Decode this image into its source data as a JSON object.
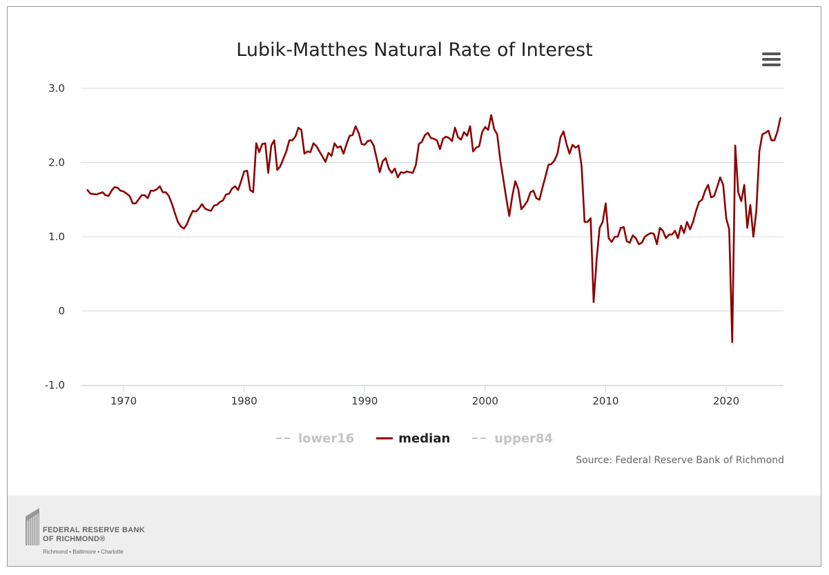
{
  "chart_data": {
    "type": "line",
    "title": "Lubik-Matthes Natural Rate of Interest",
    "xlabel": "",
    "ylabel": "",
    "xlim": [
      1966.5,
      2024.75
    ],
    "ylim": [
      -1.0,
      3.0
    ],
    "y_ticks": [
      {
        "value": 3.0,
        "label": "3.0"
      },
      {
        "value": 2.0,
        "label": "2.0"
      },
      {
        "value": 1.0,
        "label": "1.0"
      },
      {
        "value": 0,
        "label": "0"
      },
      {
        "value": -1.0,
        "label": "-1.0"
      }
    ],
    "x_ticks": [
      {
        "value": 1970,
        "label": "1970"
      },
      {
        "value": 1980,
        "label": "1980"
      },
      {
        "value": 1990,
        "label": "1990"
      },
      {
        "value": 2000,
        "label": "2000"
      },
      {
        "value": 2010,
        "label": "2010"
      },
      {
        "value": 2020,
        "label": "2020"
      }
    ],
    "grid": true,
    "legend_position": "bottom-center",
    "series": [
      {
        "name": "lower16",
        "visible": false,
        "color": "#c4c4c4",
        "dash": true,
        "values": []
      },
      {
        "name": "upper84",
        "visible": false,
        "color": "#c4c4c4",
        "dash": true,
        "values": []
      },
      {
        "name": "median",
        "visible": true,
        "color": "#8b0000",
        "points": [
          [
            1967.0,
            1.63
          ],
          [
            1967.25,
            1.58
          ],
          [
            1967.75,
            1.57
          ],
          [
            1968.25,
            1.6
          ],
          [
            1968.5,
            1.56
          ],
          [
            1968.75,
            1.55
          ],
          [
            1969.0,
            1.62
          ],
          [
            1969.25,
            1.67
          ],
          [
            1969.5,
            1.66
          ],
          [
            1969.75,
            1.62
          ],
          [
            1970.0,
            1.61
          ],
          [
            1970.25,
            1.58
          ],
          [
            1970.5,
            1.55
          ],
          [
            1970.75,
            1.45
          ],
          [
            1971.0,
            1.45
          ],
          [
            1971.5,
            1.56
          ],
          [
            1971.75,
            1.56
          ],
          [
            1972.0,
            1.52
          ],
          [
            1972.25,
            1.62
          ],
          [
            1972.5,
            1.62
          ],
          [
            1972.75,
            1.64
          ],
          [
            1973.0,
            1.68
          ],
          [
            1973.25,
            1.6
          ],
          [
            1973.5,
            1.6
          ],
          [
            1973.75,
            1.55
          ],
          [
            1974.0,
            1.45
          ],
          [
            1974.25,
            1.32
          ],
          [
            1974.5,
            1.2
          ],
          [
            1974.75,
            1.14
          ],
          [
            1975.0,
            1.11
          ],
          [
            1975.25,
            1.17
          ],
          [
            1975.5,
            1.27
          ],
          [
            1975.75,
            1.35
          ],
          [
            1976.0,
            1.34
          ],
          [
            1976.25,
            1.38
          ],
          [
            1976.5,
            1.44
          ],
          [
            1976.75,
            1.38
          ],
          [
            1977.0,
            1.36
          ],
          [
            1977.25,
            1.35
          ],
          [
            1977.5,
            1.42
          ],
          [
            1977.75,
            1.43
          ],
          [
            1978.0,
            1.47
          ],
          [
            1978.25,
            1.49
          ],
          [
            1978.5,
            1.57
          ],
          [
            1978.75,
            1.58
          ],
          [
            1979.0,
            1.65
          ],
          [
            1979.25,
            1.68
          ],
          [
            1979.5,
            1.63
          ],
          [
            1979.75,
            1.75
          ],
          [
            1980.0,
            1.88
          ],
          [
            1980.25,
            1.89
          ],
          [
            1980.5,
            1.63
          ],
          [
            1980.75,
            1.6
          ],
          [
            1981.0,
            2.26
          ],
          [
            1981.25,
            2.14
          ],
          [
            1981.5,
            2.25
          ],
          [
            1981.75,
            2.26
          ],
          [
            1982.0,
            1.86
          ],
          [
            1982.25,
            2.23
          ],
          [
            1982.5,
            2.3
          ],
          [
            1982.75,
            1.9
          ],
          [
            1983.0,
            1.95
          ],
          [
            1983.25,
            2.05
          ],
          [
            1983.5,
            2.15
          ],
          [
            1983.75,
            2.3
          ],
          [
            1984.0,
            2.3
          ],
          [
            1984.25,
            2.35
          ],
          [
            1984.5,
            2.47
          ],
          [
            1984.75,
            2.44
          ],
          [
            1985.0,
            2.12
          ],
          [
            1985.25,
            2.15
          ],
          [
            1985.5,
            2.14
          ],
          [
            1985.75,
            2.26
          ],
          [
            1986.0,
            2.22
          ],
          [
            1986.25,
            2.15
          ],
          [
            1986.5,
            2.08
          ],
          [
            1986.75,
            2.01
          ],
          [
            1987.0,
            2.13
          ],
          [
            1987.25,
            2.09
          ],
          [
            1987.5,
            2.26
          ],
          [
            1987.75,
            2.2
          ],
          [
            1988.0,
            2.22
          ],
          [
            1988.25,
            2.12
          ],
          [
            1988.5,
            2.25
          ],
          [
            1988.75,
            2.36
          ],
          [
            1989.0,
            2.37
          ],
          [
            1989.25,
            2.49
          ],
          [
            1989.5,
            2.4
          ],
          [
            1989.75,
            2.25
          ],
          [
            1990.0,
            2.24
          ],
          [
            1990.25,
            2.29
          ],
          [
            1990.5,
            2.3
          ],
          [
            1990.75,
            2.23
          ],
          [
            1991.0,
            2.05
          ],
          [
            1991.25,
            1.87
          ],
          [
            1991.5,
            2.02
          ],
          [
            1991.75,
            2.06
          ],
          [
            1992.0,
            1.92
          ],
          [
            1992.25,
            1.86
          ],
          [
            1992.5,
            1.92
          ],
          [
            1992.75,
            1.8
          ],
          [
            1993.0,
            1.87
          ],
          [
            1993.25,
            1.86
          ],
          [
            1993.5,
            1.88
          ],
          [
            1993.75,
            1.87
          ],
          [
            1994.0,
            1.86
          ],
          [
            1994.25,
            1.97
          ],
          [
            1994.5,
            2.25
          ],
          [
            1994.75,
            2.28
          ],
          [
            1995.0,
            2.37
          ],
          [
            1995.25,
            2.4
          ],
          [
            1995.5,
            2.33
          ],
          [
            1995.75,
            2.32
          ],
          [
            1996.0,
            2.3
          ],
          [
            1996.25,
            2.18
          ],
          [
            1996.5,
            2.32
          ],
          [
            1996.75,
            2.35
          ],
          [
            1997.0,
            2.33
          ],
          [
            1997.25,
            2.29
          ],
          [
            1997.5,
            2.47
          ],
          [
            1997.75,
            2.34
          ],
          [
            1998.0,
            2.31
          ],
          [
            1998.25,
            2.41
          ],
          [
            1998.5,
            2.36
          ],
          [
            1998.75,
            2.49
          ],
          [
            1999.0,
            2.15
          ],
          [
            1999.25,
            2.2
          ],
          [
            1999.5,
            2.22
          ],
          [
            1999.75,
            2.41
          ],
          [
            2000.0,
            2.48
          ],
          [
            2000.25,
            2.44
          ],
          [
            2000.5,
            2.64
          ],
          [
            2000.75,
            2.45
          ],
          [
            2001.0,
            2.38
          ],
          [
            2001.25,
            2.04
          ],
          [
            2001.5,
            1.78
          ],
          [
            2001.75,
            1.52
          ],
          [
            2002.0,
            1.28
          ],
          [
            2002.25,
            1.55
          ],
          [
            2002.5,
            1.75
          ],
          [
            2002.75,
            1.64
          ],
          [
            2003.0,
            1.37
          ],
          [
            2003.25,
            1.42
          ],
          [
            2003.5,
            1.48
          ],
          [
            2003.75,
            1.6
          ],
          [
            2004.0,
            1.62
          ],
          [
            2004.25,
            1.52
          ],
          [
            2004.5,
            1.5
          ],
          [
            2004.75,
            1.66
          ],
          [
            2005.0,
            1.81
          ],
          [
            2005.25,
            1.97
          ],
          [
            2005.5,
            1.98
          ],
          [
            2005.75,
            2.03
          ],
          [
            2006.0,
            2.12
          ],
          [
            2006.25,
            2.34
          ],
          [
            2006.5,
            2.42
          ],
          [
            2006.75,
            2.25
          ],
          [
            2007.0,
            2.12
          ],
          [
            2007.25,
            2.24
          ],
          [
            2007.5,
            2.2
          ],
          [
            2007.75,
            2.23
          ],
          [
            2008.0,
            1.95
          ],
          [
            2008.25,
            1.2
          ],
          [
            2008.5,
            1.2
          ],
          [
            2008.75,
            1.25
          ],
          [
            2009.0,
            0.12
          ],
          [
            2009.25,
            0.7
          ],
          [
            2009.5,
            1.12
          ],
          [
            2009.75,
            1.2
          ],
          [
            2010.0,
            1.45
          ],
          [
            2010.25,
            0.98
          ],
          [
            2010.5,
            0.93
          ],
          [
            2010.75,
            1.0
          ],
          [
            2011.0,
            1.0
          ],
          [
            2011.25,
            1.12
          ],
          [
            2011.5,
            1.13
          ],
          [
            2011.75,
            0.94
          ],
          [
            2012.0,
            0.92
          ],
          [
            2012.25,
            1.02
          ],
          [
            2012.5,
            0.98
          ],
          [
            2012.75,
            0.9
          ],
          [
            2013.0,
            0.92
          ],
          [
            2013.25,
            1.0
          ],
          [
            2013.5,
            1.03
          ],
          [
            2013.75,
            1.05
          ],
          [
            2014.0,
            1.04
          ],
          [
            2014.25,
            0.9
          ],
          [
            2014.5,
            1.12
          ],
          [
            2014.75,
            1.08
          ],
          [
            2015.0,
            0.98
          ],
          [
            2015.25,
            1.03
          ],
          [
            2015.5,
            1.03
          ],
          [
            2015.75,
            1.08
          ],
          [
            2016.0,
            0.98
          ],
          [
            2016.25,
            1.15
          ],
          [
            2016.5,
            1.05
          ],
          [
            2016.75,
            1.2
          ],
          [
            2017.0,
            1.1
          ],
          [
            2017.25,
            1.2
          ],
          [
            2017.5,
            1.35
          ],
          [
            2017.75,
            1.47
          ],
          [
            2018.0,
            1.5
          ],
          [
            2018.25,
            1.62
          ],
          [
            2018.5,
            1.7
          ],
          [
            2018.75,
            1.53
          ],
          [
            2019.0,
            1.55
          ],
          [
            2019.25,
            1.67
          ],
          [
            2019.5,
            1.8
          ],
          [
            2019.75,
            1.7
          ],
          [
            2020.0,
            1.25
          ],
          [
            2020.25,
            1.1
          ],
          [
            2020.5,
            -0.42
          ],
          [
            2020.75,
            2.23
          ],
          [
            2021.0,
            1.6
          ],
          [
            2021.25,
            1.48
          ],
          [
            2021.5,
            1.7
          ],
          [
            2021.75,
            1.12
          ],
          [
            2022.0,
            1.43
          ],
          [
            2022.25,
            1.0
          ],
          [
            2022.5,
            1.35
          ],
          [
            2022.75,
            2.15
          ],
          [
            2023.0,
            2.38
          ],
          [
            2023.25,
            2.4
          ],
          [
            2023.5,
            2.43
          ],
          [
            2023.75,
            2.3
          ],
          [
            2024.0,
            2.3
          ],
          [
            2024.25,
            2.42
          ],
          [
            2024.5,
            2.6
          ]
        ]
      }
    ]
  },
  "legend": {
    "lower16": "lower16",
    "median": "median",
    "upper84": "upper84"
  },
  "source": "Source: Federal Reserve Bank of Richmond",
  "footer": {
    "bank_name_line1": "FEDERAL RESERVE BANK",
    "bank_name_line2": "OF RICHMOND®",
    "locations": "Richmond • Baltimore • Charlotte"
  },
  "colors": {
    "median": "#8b0000",
    "hidden_series": "#c4c4c4",
    "grid": "#d8d8d8",
    "x_axis": "#ccd6eb"
  }
}
